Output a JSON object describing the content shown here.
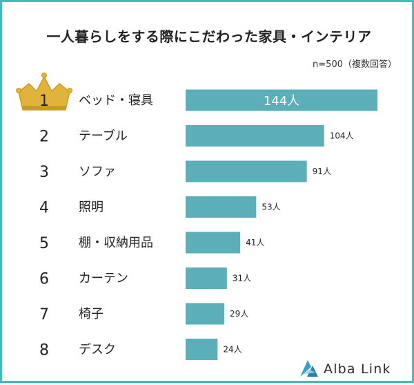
{
  "title": "一人暮らしをする際にこだわった家具・インテリア",
  "note": "n=500（複数回答）",
  "brand": "Alba Link",
  "colors": {
    "bar": "#5aafb8",
    "frame": "#3dbfb8",
    "crown": "#e0b43a"
  },
  "chart_data": {
    "type": "bar",
    "orientation": "horizontal",
    "title": "一人暮らしをする際にこだわった家具・インテリア",
    "ranks": [
      "1",
      "2",
      "3",
      "4",
      "5",
      "6",
      "7",
      "8"
    ],
    "categories": [
      "ベッド・寝具",
      "テーブル",
      "ソファ",
      "照明",
      "棚・収納用品",
      "カーテン",
      "椅子",
      "デスク"
    ],
    "values": [
      144,
      104,
      91,
      53,
      41,
      31,
      29,
      24
    ],
    "value_labels": [
      "144人",
      "104人",
      "91人",
      "53人",
      "41人",
      "31人",
      "29人",
      "24人"
    ],
    "unit": "人",
    "xlim": [
      0,
      144
    ],
    "grid": false,
    "legend": "none"
  }
}
